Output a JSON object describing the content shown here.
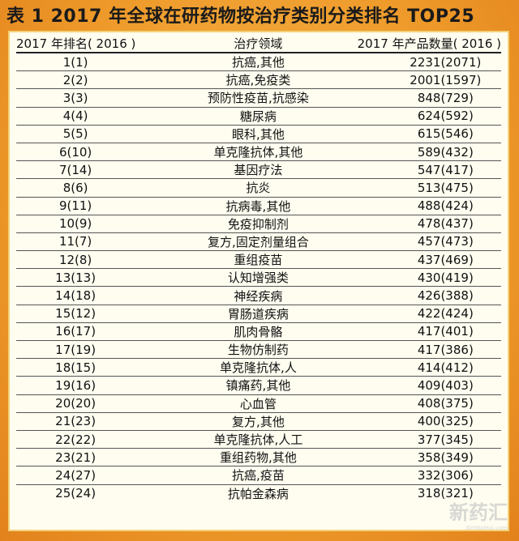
{
  "title": "表 1   2017 年全球在研药物按治疗类别分类排名 TOP25",
  "headers": [
    "2017 年排名( 2016 )",
    "治疗领域",
    "2017 年产品数量( 2016 )"
  ],
  "rows": [
    [
      "1(1)",
      "抗癌,其他",
      "2231(2071)"
    ],
    [
      "2(2)",
      "抗癌,免疫类",
      "2001(1597)"
    ],
    [
      "3(3)",
      "预防性疫苗,抗感染",
      "848(729)"
    ],
    [
      "4(4)",
      "糖尿病",
      "624(592)"
    ],
    [
      "5(5)",
      "眼科,其他",
      "615(546)"
    ],
    [
      "6(10)",
      "单克隆抗体,其他",
      "589(432)"
    ],
    [
      "7(14)",
      "基因疗法",
      "547(417)"
    ],
    [
      "8(6)",
      "抗炎",
      "513(475)"
    ],
    [
      "9(11)",
      "抗病毒,其他",
      "488(424)"
    ],
    [
      "10(9)",
      "免疫抑制剂",
      "478(437)"
    ],
    [
      "11(7)",
      "复方,固定剂量组合",
      "457(473)"
    ],
    [
      "12(8)",
      "重组疫苗",
      "437(469)"
    ],
    [
      "13(13)",
      "认知增强类",
      "430(419)"
    ],
    [
      "14(18)",
      "神经疾病",
      "426(388)"
    ],
    [
      "15(12)",
      "胃肠道疾病",
      "422(424)"
    ],
    [
      "16(17)",
      "肌肉骨骼",
      "417(401)"
    ],
    [
      "17(19)",
      "生物仿制药",
      "417(386)"
    ],
    [
      "18(15)",
      "单克隆抗体,人",
      "414(412)"
    ],
    [
      "19(16)",
      "镇痛药,其他",
      "409(403)"
    ],
    [
      "20(20)",
      "心血管",
      "408(375)"
    ],
    [
      "21(23)",
      "复方,其他",
      "400(325)"
    ],
    [
      "22(22)",
      "单克隆抗体,人工",
      "377(345)"
    ],
    [
      "23(21)",
      "重组药物,其他",
      "358(349)"
    ],
    [
      "24(27)",
      "抗癌,疫苗",
      "332(306)"
    ],
    [
      "25(24)",
      "抗帕金森病",
      "318(321)"
    ]
  ],
  "watermark": {
    "name": "新药汇",
    "url": "XinYaoHui.com"
  }
}
